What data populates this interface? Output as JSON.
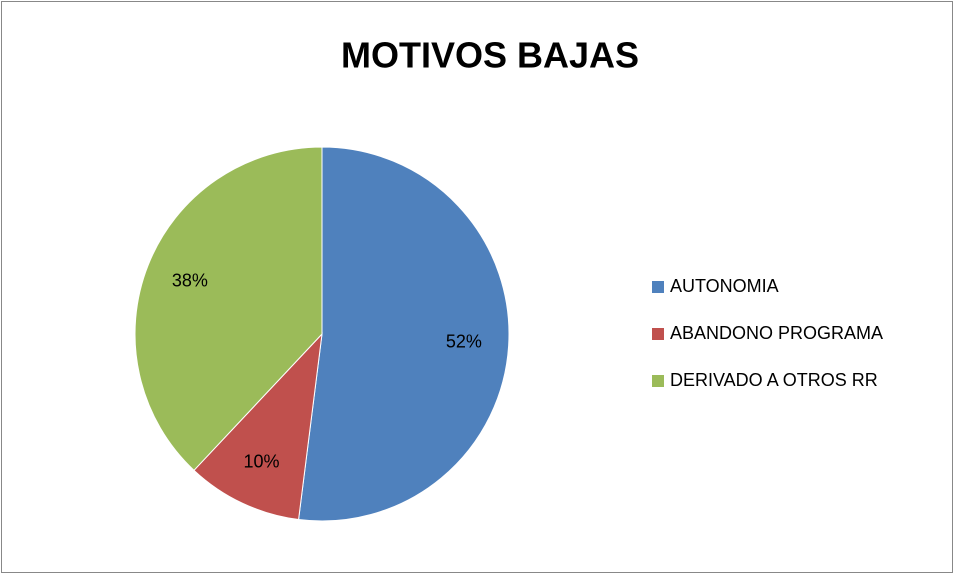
{
  "chart_data": {
    "type": "pie",
    "title": "MOTIVOS BAJAS",
    "categories": [
      "AUTONOMIA",
      "ABANDONO PROGRAMA",
      "DERIVADO A OTROS RR"
    ],
    "values": [
      52,
      10,
      38
    ],
    "value_labels": [
      "52%",
      "10%",
      "38%"
    ],
    "colors": [
      "#4f81bd",
      "#c0504d",
      "#9bbb59"
    ],
    "legend": "right"
  }
}
